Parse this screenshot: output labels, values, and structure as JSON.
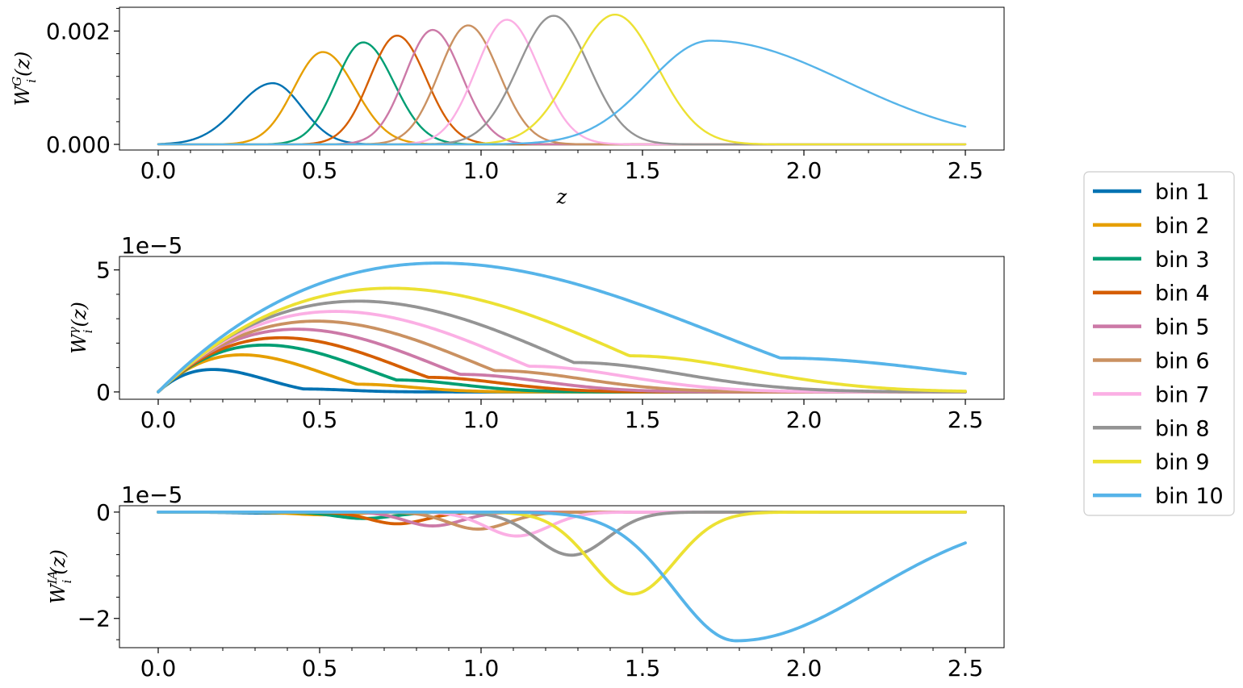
{
  "chart_data": {
    "type": "line",
    "colors": [
      "#0072b2",
      "#e69f00",
      "#009e73",
      "#d55e00",
      "#cc79a7",
      "#ca9161",
      "#fbafe4",
      "#949494",
      "#ece133",
      "#56b4e9"
    ],
    "legend": {
      "placement": "center-right",
      "entries": [
        "bin 1",
        "bin 2",
        "bin 3",
        "bin 4",
        "bin 5",
        "bin 6",
        "bin 7",
        "bin 8",
        "bin 9",
        "bin 10"
      ]
    },
    "panels": [
      {
        "id": "galaxy",
        "ylabel_main": "W",
        "ylabel_sup": "G",
        "ylabel_sub": "i",
        "ylabel_arg": "(z)",
        "xlabel": "z",
        "exponent": "",
        "xlim": [
          -0.12,
          2.62
        ],
        "ylim": [
          -0.0001,
          0.00242
        ],
        "xticks": [
          "0.0",
          "0.5",
          "1.0",
          "1.5",
          "2.0",
          "2.5"
        ],
        "xtick_values": [
          0,
          0.5,
          1.0,
          1.5,
          2.0,
          2.5
        ],
        "yticks": [
          "0.000",
          "0.002"
        ],
        "ytick_values": [
          0,
          0.002
        ],
        "grid": false,
        "model": "gaussian",
        "series": [
          {
            "peak_z": 0.355,
            "peak": 0.00108,
            "width_left": 0.11,
            "width_right": 0.09
          },
          {
            "peak_z": 0.51,
            "peak": 0.00163,
            "width_left": 0.09,
            "width_right": 0.1
          },
          {
            "peak_z": 0.635,
            "peak": 0.0018,
            "width_left": 0.085,
            "width_right": 0.095
          },
          {
            "peak_z": 0.74,
            "peak": 0.00192,
            "width_left": 0.085,
            "width_right": 0.09
          },
          {
            "peak_z": 0.85,
            "peak": 0.00202,
            "width_left": 0.085,
            "width_right": 0.09
          },
          {
            "peak_z": 0.96,
            "peak": 0.0021,
            "width_left": 0.09,
            "width_right": 0.095
          },
          {
            "peak_z": 1.08,
            "peak": 0.0022,
            "width_left": 0.095,
            "width_right": 0.1
          },
          {
            "peak_z": 1.225,
            "peak": 0.00227,
            "width_left": 0.11,
            "width_right": 0.11
          },
          {
            "peak_z": 1.415,
            "peak": 0.00229,
            "width_left": 0.13,
            "width_right": 0.13
          },
          {
            "peak_z": 1.71,
            "peak": 0.00183,
            "width_left": 0.19,
            "width_right": 0.42
          }
        ]
      },
      {
        "id": "lensing",
        "ylabel_main": "W",
        "ylabel_sup": "γ",
        "ylabel_sub": "i",
        "ylabel_arg": "(z)",
        "xlabel": "",
        "exponent": "1e−5",
        "xlim": [
          -0.12,
          2.62
        ],
        "ylim": [
          -0.3,
          5.55
        ],
        "xticks": [
          "0.0",
          "0.5",
          "1.0",
          "1.5",
          "2.0",
          "2.5"
        ],
        "xtick_values": [
          0,
          0.5,
          1.0,
          1.5,
          2.0,
          2.5
        ],
        "yticks": [
          "0",
          "5"
        ],
        "ytick_values": [
          0,
          5
        ],
        "grid": false,
        "model": "lensing",
        "series": [
          {
            "peak_z": 0.17,
            "peak": 0.92,
            "end_z": 0.55
          },
          {
            "peak_z": 0.26,
            "peak": 1.52,
            "end_z": 0.75
          },
          {
            "peak_z": 0.33,
            "peak": 1.92,
            "end_z": 0.9
          },
          {
            "peak_z": 0.38,
            "peak": 2.22,
            "end_z": 1.02
          },
          {
            "peak_z": 0.43,
            "peak": 2.57,
            "end_z": 1.14
          },
          {
            "peak_z": 0.49,
            "peak": 2.9,
            "end_z": 1.27
          },
          {
            "peak_z": 0.55,
            "peak": 3.3,
            "end_z": 1.4
          },
          {
            "peak_z": 0.62,
            "peak": 3.72,
            "end_z": 1.57
          },
          {
            "peak_z": 0.72,
            "peak": 4.25,
            "end_z": 1.78
          },
          {
            "peak_z": 0.87,
            "peak": 5.28,
            "end_z": 2.35
          }
        ]
      },
      {
        "id": "intrinsic",
        "ylabel_main": "W",
        "ylabel_sup": "IA",
        "ylabel_sub": "i",
        "ylabel_arg": "(z)",
        "xlabel": "",
        "exponent": "1e−5",
        "xlim": [
          -0.12,
          2.62
        ],
        "ylim": [
          -2.55,
          0.12
        ],
        "xticks": [
          "0.0",
          "0.5",
          "1.0",
          "1.5",
          "2.0",
          "2.5"
        ],
        "xtick_values": [
          0,
          0.5,
          1.0,
          1.5,
          2.0,
          2.5
        ],
        "yticks": [
          "−2",
          "0"
        ],
        "ytick_values": [
          -2,
          0
        ],
        "grid": false,
        "model": "gaussian",
        "series": [
          {
            "peak_z": 0.36,
            "peak": -0.02,
            "width_left": 0.11,
            "width_right": 0.09
          },
          {
            "peak_z": 0.51,
            "peak": -0.05,
            "width_left": 0.09,
            "width_right": 0.1
          },
          {
            "peak_z": 0.635,
            "peak": -0.12,
            "width_left": 0.085,
            "width_right": 0.095
          },
          {
            "peak_z": 0.74,
            "peak": -0.22,
            "width_left": 0.085,
            "width_right": 0.09
          },
          {
            "peak_z": 0.85,
            "peak": -0.26,
            "width_left": 0.085,
            "width_right": 0.09
          },
          {
            "peak_z": 0.99,
            "peak": -0.32,
            "width_left": 0.09,
            "width_right": 0.095
          },
          {
            "peak_z": 1.11,
            "peak": -0.45,
            "width_left": 0.095,
            "width_right": 0.1
          },
          {
            "peak_z": 1.28,
            "peak": -0.81,
            "width_left": 0.11,
            "width_right": 0.11
          },
          {
            "peak_z": 1.47,
            "peak": -1.54,
            "width_left": 0.13,
            "width_right": 0.13
          },
          {
            "peak_z": 1.79,
            "peak": -2.42,
            "width_left": 0.19,
            "width_right": 0.42
          }
        ]
      }
    ]
  }
}
